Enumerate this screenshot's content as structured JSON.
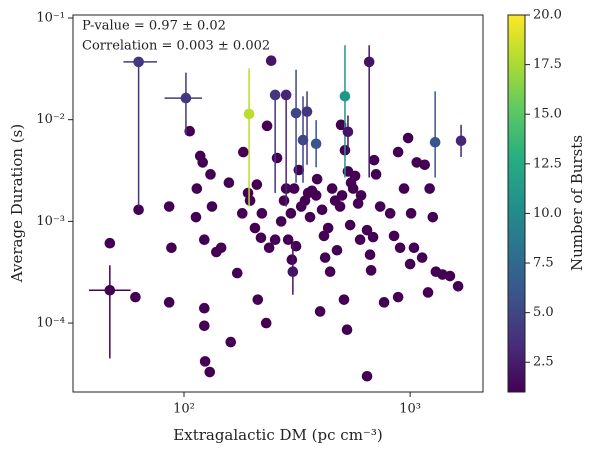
{
  "chart_data": {
    "type": "scatter",
    "annotations": [
      "P-value = 0.97 ± 0.02",
      "Correlation = 0.003 ± 0.002"
    ],
    "x_label": "Extragalactic DM (pc cm⁻³)",
    "y_label": "Average Duration (s)",
    "xscale": "log",
    "yscale": "log",
    "xlim": [
      32.3,
      2100
    ],
    "ylim": [
      2.1e-05,
      0.107
    ],
    "xticks": [
      {
        "value": 100,
        "label": "10²"
      },
      {
        "value": 1000,
        "label": "10³"
      }
    ],
    "yticks": [
      {
        "value": 0.0001,
        "label": "10⁻⁴"
      },
      {
        "value": 0.001,
        "label": "10⁻³"
      },
      {
        "value": 0.01,
        "label": "10⁻²"
      },
      {
        "value": 0.1,
        "label": "10⁻¹"
      }
    ],
    "colormap": "viridis",
    "colorbar": {
      "label": "Number of Bursts",
      "clim": [
        1,
        20
      ],
      "ticks": [
        2.5,
        {
          "value": 5,
          "label": "5.0"
        },
        7.5,
        {
          "value": 10,
          "label": "10.0"
        },
        12.5,
        {
          "value": 15,
          "label": "15.0"
        },
        17.5,
        {
          "value": 20,
          "label": "20.0"
        }
      ]
    },
    "points": {
      "x": [
        47,
        63,
        61,
        86,
        86,
        88,
        106,
        113,
        114,
        118,
        121,
        123,
        123,
        123,
        124,
        130,
        131,
        133,
        139,
        146,
        158,
        161,
        172,
        181,
        183,
        192,
        196,
        210,
        206,
        212,
        219,
        221,
        231,
        233,
        238,
        253,
        258,
        269,
        277,
        283,
        289,
        297,
        300,
        307,
        313,
        322,
        330,
        343,
        354,
        361,
        368,
        384,
        388,
        400,
        408,
        416,
        421,
        434,
        443,
        452,
        466,
        475,
        490,
        500,
        510,
        515,
        526,
        531,
        543,
        548,
        560,
        571,
        589,
        601,
        607,
        645,
        645,
        665,
        672,
        686,
        693,
        707,
        737,
        767,
        816,
        849,
        885,
        885,
        903,
        940,
        980,
        1000,
        1010,
        1040,
        1070,
        1130,
        1160,
        1200,
        1220,
        1260,
        1300,
        1390,
        1500,
        1630,
        495,
        243
      ],
      "y": [
        0.00061,
        0.0013,
        0.00018,
        0.0014,
        0.00016,
        0.00055,
        0.0077,
        0.0011,
        0.0021,
        0.0044,
        0.0038,
        0.00066,
        0.00014,
        9.4e-05,
        4.2e-05,
        3.3e-05,
        0.0029,
        0.0014,
        0.0005,
        0.00055,
        0.0024,
        6.5e-05,
        0.00031,
        0.0012,
        0.0048,
        0.0019,
        0.0016,
        0.0023,
        0.00086,
        0.00017,
        0.00069,
        0.0012,
        0.0001,
        0.0087,
        0.00055,
        0.00066,
        0.0042,
        0.001,
        0.0016,
        0.0021,
        0.00066,
        0.0012,
        0.00042,
        0.0021,
        0.00057,
        0.0032,
        0.0014,
        0.0016,
        0.0019,
        0.0011,
        0.002,
        0.0018,
        0.0026,
        0.00013,
        0.0013,
        0.00072,
        0.00044,
        0.00086,
        0.00032,
        0.0021,
        0.0016,
        0.00052,
        0.0014,
        0.0018,
        0.00017,
        0.005,
        8.6e-05,
        0.0031,
        0.00092,
        0.0024,
        0.0021,
        0.0028,
        0.0015,
        0.00066,
        0.0018,
        0.00082,
        3e-05,
        0.00047,
        0.00033,
        0.0007,
        0.004,
        0.0029,
        0.0014,
        0.00016,
        0.0012,
        0.00072,
        0.0048,
        0.00018,
        0.00055,
        0.0021,
        0.0066,
        0.00038,
        0.0012,
        0.00055,
        0.0038,
        0.00044,
        0.0036,
        0.0002,
        0.0021,
        0.0011,
        0.00032,
        0.0003,
        0.00029,
        0.00023,
        0.0089,
        0.038
      ],
      "c": [
        1,
        1,
        1,
        1,
        1,
        1,
        1,
        1,
        1,
        1,
        1,
        1,
        1,
        1,
        1,
        1,
        1,
        1,
        1,
        1,
        1,
        1,
        1,
        1,
        1,
        1,
        1,
        1,
        1,
        1,
        1,
        1,
        1,
        1,
        1,
        1,
        1,
        1,
        1,
        1,
        1,
        1,
        1,
        1,
        1,
        1,
        1,
        1,
        1,
        1,
        1,
        1,
        1,
        1,
        1,
        1,
        1,
        1,
        1,
        1,
        1,
        1,
        1,
        1,
        1,
        1,
        1,
        1,
        1,
        1,
        1,
        1,
        1,
        1,
        1,
        1,
        1,
        1,
        1,
        1,
        1,
        1,
        1,
        1,
        1,
        1,
        1,
        1,
        1,
        1,
        1,
        1,
        1,
        1,
        1,
        1,
        1,
        1,
        1,
        1,
        1,
        1,
        1,
        1,
        1,
        2
      ]
    },
    "error_points": {
      "x": [
        47,
        63,
        102,
        194,
        515,
        1290,
        1680,
        253,
        283,
        313,
        336,
        384,
        659,
        303,
        350,
        531
      ],
      "y": [
        0.00021,
        0.037,
        0.0163,
        0.0114,
        0.017,
        0.006,
        0.0062,
        0.0175,
        0.0175,
        0.0116,
        0.0063,
        0.0058,
        0.037,
        0.00032,
        0.012,
        0.0076
      ],
      "c": [
        1,
        4,
        4,
        18,
        11,
        6,
        3,
        4,
        3,
        5,
        5,
        6,
        2,
        2,
        4,
        2
      ],
      "x_low": [
        38,
        54,
        82,
        null,
        null,
        null,
        null,
        null,
        null,
        null,
        null,
        null,
        null,
        null,
        null,
        null
      ],
      "x_high": [
        58,
        76,
        120,
        null,
        null,
        null,
        null,
        null,
        null,
        null,
        null,
        null,
        null,
        null,
        null,
        null
      ],
      "y_low": [
        4.5e-05,
        0.0014,
        0.0071,
        0.0014,
        0.0027,
        0.0027,
        0.0043,
        0.0019,
        0.0014,
        0.0024,
        0.0024,
        0.0034,
        0.0027,
        0.00019,
        0.0036,
        0.0047
      ],
      "y_high": [
        0.00037,
        null,
        0.029,
        0.032,
        0.054,
        0.019,
        0.0089,
        null,
        null,
        0.031,
        0.017,
        0.0099,
        0.054,
        0.00061,
        0.019,
        0.011
      ]
    }
  }
}
